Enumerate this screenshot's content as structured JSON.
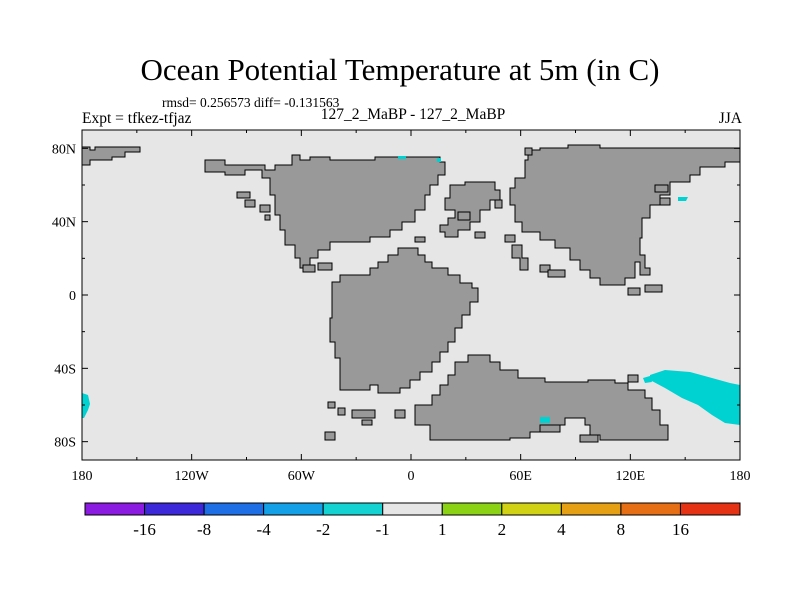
{
  "header": {
    "title": "Ocean Potential Temperature at 5m (in C)",
    "stats": "rmsd= 0.256573 diff= -0.131563",
    "experiment": "Expt = tfkez-tfjaz",
    "case": "127_2_MaBP - 127_2_MaBP",
    "season": "JJA"
  },
  "map": {
    "lon_range": [
      -180,
      180
    ],
    "lat_range": [
      -90,
      90
    ],
    "x_ticks": [
      {
        "lon": -180,
        "label": "180"
      },
      {
        "lon": -120,
        "label": "120W"
      },
      {
        "lon": -60,
        "label": "60W"
      },
      {
        "lon": 0,
        "label": "0"
      },
      {
        "lon": 60,
        "label": "60E"
      },
      {
        "lon": 120,
        "label": "120E"
      },
      {
        "lon": 180,
        "label": "180"
      }
    ],
    "y_ticks": [
      {
        "lat": 80,
        "label": "80N"
      },
      {
        "lat": 40,
        "label": "40N"
      },
      {
        "lat": 0,
        "label": "0"
      },
      {
        "lat": -40,
        "label": "40S"
      },
      {
        "lat": -80,
        "label": "80S"
      }
    ],
    "colors": {
      "ocean": "#e6e6e6",
      "land": "#999999",
      "anomaly": "#00d2d2"
    }
  },
  "colorbar": {
    "labels": [
      "-16",
      "-8",
      "-4",
      "-2",
      "-1",
      "1",
      "2",
      "4",
      "8",
      "16"
    ],
    "colors": [
      "#8c1be2",
      "#3c28d8",
      "#1e6ee6",
      "#14a0e6",
      "#14d2d2",
      "#e6e6e6",
      "#8cd214",
      "#d2d214",
      "#e6a014",
      "#e66e14",
      "#e63214"
    ]
  }
}
